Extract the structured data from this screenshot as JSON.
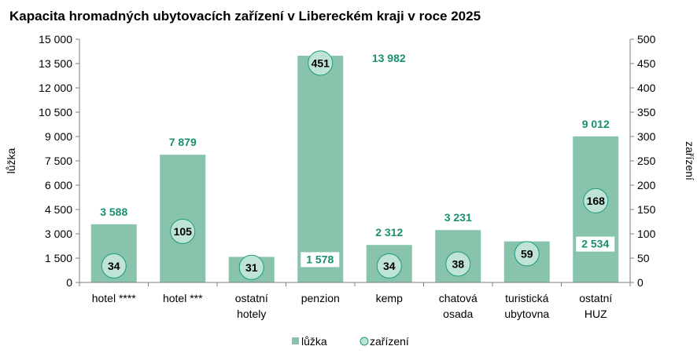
{
  "chart_data": {
    "type": "bar",
    "title": "Kapacita hromadných ubytovacích zařízení v Libereckém kraji  v roce 2025",
    "categories": [
      [
        "hotel ****"
      ],
      [
        "hotel ***"
      ],
      [
        "ostatní",
        "hotely"
      ],
      [
        "penzion"
      ],
      [
        "kemp"
      ],
      [
        "chatová",
        "osada"
      ],
      [
        "turistická",
        "ubytovna"
      ],
      [
        "ostatní",
        "HUZ"
      ]
    ],
    "series": [
      {
        "name": "lůžka",
        "kind": "bar",
        "axis": "left",
        "values": [
          3588,
          7879,
          1578,
          13982,
          2312,
          3231,
          2534,
          9012
        ],
        "labels": [
          "3 588",
          "7 879",
          "1 578",
          "13 982",
          "2 312",
          "3 231",
          "2 534",
          "9 012"
        ]
      },
      {
        "name": "zařízení",
        "kind": "marker",
        "axis": "right",
        "values": [
          34,
          105,
          31,
          451,
          34,
          38,
          59,
          168
        ],
        "labels": [
          "34",
          "105",
          "31",
          "451",
          "34",
          "38",
          "59",
          "168"
        ]
      }
    ],
    "y_left": {
      "label": "lůžka",
      "ylim": [
        0,
        15000
      ],
      "ticks": [
        0,
        1500,
        3000,
        4500,
        6000,
        7500,
        9000,
        10500,
        12000,
        13500,
        15000
      ],
      "tick_labels": [
        "0",
        "1 500",
        "3 000",
        "4 500",
        "6 000",
        "7 500",
        "9 000",
        "10 500",
        "12 000",
        "13 500",
        "15 000"
      ]
    },
    "y_right": {
      "label": "zařízení",
      "ylim": [
        0,
        500
      ],
      "ticks": [
        0,
        50,
        100,
        150,
        200,
        250,
        300,
        350,
        400,
        450,
        500
      ],
      "tick_labels": [
        "0",
        "50",
        "100",
        "150",
        "200",
        "250",
        "300",
        "350",
        "400",
        "450",
        "500"
      ]
    },
    "grid": false,
    "legend": "bottom",
    "colors": {
      "bar": "#88c3ab",
      "marker_fill": "#bfe3d6",
      "marker_stroke": "#1a9c80",
      "data_label": "#189070",
      "axis": "#7f7f7f"
    }
  }
}
